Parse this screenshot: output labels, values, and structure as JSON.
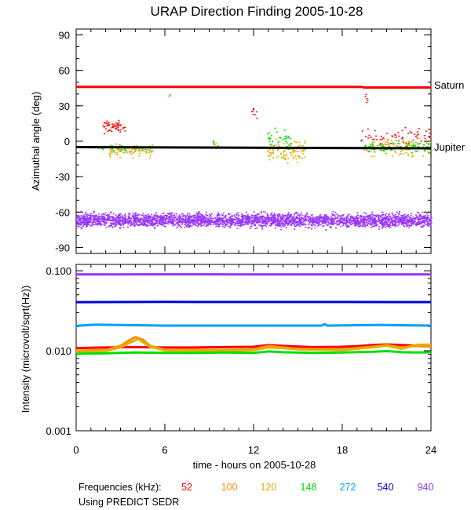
{
  "chart_data": [
    {
      "type": "scatter",
      "title": "URAP Direction Finding  2005-10-28",
      "ylabel": "Azimuthal angle (deg)",
      "ylim": [
        -95,
        95
      ],
      "yticks": [
        "90",
        "60",
        "30",
        "0",
        "-30",
        "-60",
        "-90"
      ],
      "xlim": [
        0,
        24
      ],
      "reference_lines": [
        {
          "name": "Saturn",
          "color": "#ff0000",
          "points": [
            [
              0,
              46
            ],
            [
              19.3,
              46
            ],
            [
              19.5,
              45.5
            ],
            [
              24,
              45.5
            ]
          ]
        },
        {
          "name": "Jupiter",
          "color": "#000000",
          "points": [
            [
              0,
              -5
            ],
            [
              24,
              -6
            ]
          ]
        }
      ],
      "series": [
        {
          "name": "52",
          "color": "#ff0000",
          "clusters": [
            {
              "x": [
                1.7,
                3.3
              ],
              "y": [
                5,
                20
              ],
              "count": 60
            },
            {
              "x": [
                11.8,
                12.3
              ],
              "y": [
                18,
                30
              ],
              "count": 8
            },
            {
              "x": [
                19.2,
                24
              ],
              "y": [
                -5,
                15
              ],
              "count": 60
            },
            {
              "x": [
                19.5,
                19.7
              ],
              "y": [
                30,
                45
              ],
              "count": 5
            }
          ]
        },
        {
          "name": "100",
          "color": "#ff8c00",
          "clusters": [
            {
              "x": [
                2.5,
                3.0
              ],
              "y": [
                -10,
                0
              ],
              "count": 8
            },
            {
              "x": [
                20.5,
                22.5
              ],
              "y": [
                -10,
                5
              ],
              "count": 20
            }
          ]
        },
        {
          "name": "120",
          "color": "#e0b000",
          "clusters": [
            {
              "x": [
                2.2,
                5.2
              ],
              "y": [
                -15,
                0
              ],
              "count": 90
            },
            {
              "x": [
                12.8,
                15.5
              ],
              "y": [
                -20,
                5
              ],
              "count": 110
            },
            {
              "x": [
                19.3,
                24
              ],
              "y": [
                -15,
                5
              ],
              "count": 90
            },
            {
              "x": [
                9.3,
                9.5
              ],
              "y": [
                -10,
                0
              ],
              "count": 4
            }
          ]
        },
        {
          "name": "148",
          "color": "#00e000",
          "clusters": [
            {
              "x": [
                1.4,
                5.0
              ],
              "y": [
                -10,
                -2
              ],
              "count": 25
            },
            {
              "x": [
                12.8,
                14.5
              ],
              "y": [
                -10,
                15
              ],
              "count": 35
            },
            {
              "x": [
                19.5,
                24
              ],
              "y": [
                -12,
                2
              ],
              "count": 80
            },
            {
              "x": [
                9.2,
                9.6
              ],
              "y": [
                -8,
                4
              ],
              "count": 6
            },
            {
              "x": [
                6.2,
                6.4
              ],
              "y": [
                35,
                42
              ],
              "count": 2
            }
          ]
        },
        {
          "name": "940",
          "color": "#9933ff",
          "clusters": [
            {
              "x": [
                0,
                24
              ],
              "y": [
                -75,
                -58
              ],
              "count": 3000
            }
          ]
        }
      ]
    },
    {
      "type": "line",
      "xlabel": "time - hours on 2005-10-28",
      "xticks": [
        "0",
        "6",
        "12",
        "18",
        "24"
      ],
      "ylabel": "Intensity (microvolt/sqrt(Hz))",
      "yscale": "log",
      "ylim": [
        0.001,
        0.12
      ],
      "yticks": [
        "0.100",
        "0.010",
        "0.001"
      ],
      "series": [
        {
          "name": "52",
          "color": "#ff0000",
          "x": [
            0,
            2,
            4,
            6,
            8,
            10,
            12,
            13,
            14,
            16,
            18,
            19,
            20,
            21,
            22,
            23,
            24
          ],
          "y": [
            0.0108,
            0.011,
            0.0111,
            0.011,
            0.011,
            0.0111,
            0.0112,
            0.0118,
            0.0115,
            0.0111,
            0.0112,
            0.0114,
            0.0118,
            0.012,
            0.0118,
            0.0116,
            0.0117
          ]
        },
        {
          "name": "100",
          "color": "#ff8c00",
          "x": [
            0,
            2,
            3,
            3.5,
            4,
            4.5,
            5,
            6,
            10,
            12,
            13,
            14,
            15,
            18,
            20,
            21,
            22,
            23,
            24
          ],
          "y": [
            0.01,
            0.0102,
            0.0115,
            0.0132,
            0.0148,
            0.0138,
            0.0115,
            0.0103,
            0.0102,
            0.0104,
            0.0115,
            0.011,
            0.0105,
            0.0104,
            0.0112,
            0.0118,
            0.011,
            0.0115,
            0.0112
          ]
        },
        {
          "name": "120",
          "color": "#e0b000",
          "x": [
            0,
            2,
            3,
            3.7,
            4.2,
            5,
            6,
            10,
            12,
            13,
            14,
            15,
            18,
            20,
            21,
            22,
            23,
            24
          ],
          "y": [
            0.0098,
            0.01,
            0.011,
            0.0128,
            0.014,
            0.0112,
            0.0101,
            0.01,
            0.0102,
            0.011,
            0.0108,
            0.0104,
            0.0102,
            0.011,
            0.0116,
            0.0106,
            0.0118,
            0.012
          ]
        },
        {
          "name": "148",
          "color": "#00e000",
          "x": [
            0,
            2,
            4,
            6,
            8,
            10,
            12,
            13,
            14,
            16,
            18,
            20,
            21,
            22,
            23,
            24
          ],
          "y": [
            0.0092,
            0.0093,
            0.0095,
            0.0094,
            0.0094,
            0.0095,
            0.0094,
            0.0098,
            0.0096,
            0.0094,
            0.0095,
            0.0097,
            0.0099,
            0.0096,
            0.0095,
            0.0096
          ]
        },
        {
          "name": "272",
          "color": "#00a0ff",
          "x": [
            0,
            1.3,
            6,
            12,
            16.6,
            16.8,
            17,
            20.5,
            24
          ],
          "y": [
            0.0205,
            0.0212,
            0.0206,
            0.0206,
            0.0206,
            0.0215,
            0.0206,
            0.021,
            0.0206
          ]
        },
        {
          "name": "540",
          "color": "#0000dd",
          "x": [
            0,
            6,
            12,
            18,
            24
          ],
          "y": [
            0.0405,
            0.0408,
            0.0407,
            0.0407,
            0.0406
          ]
        },
        {
          "name": "940",
          "color": "#9933ff",
          "x": [
            0,
            6,
            12,
            18,
            24
          ],
          "y": [
            0.09,
            0.0902,
            0.0901,
            0.0901,
            0.09
          ]
        }
      ]
    }
  ],
  "legend": {
    "label": "Frequencies (kHz):",
    "items": [
      {
        "text": "52",
        "color": "#ff0000"
      },
      {
        "text": "100",
        "color": "#ff8c00"
      },
      {
        "text": "120",
        "color": "#e0b000"
      },
      {
        "text": "148",
        "color": "#00e000"
      },
      {
        "text": "272",
        "color": "#00a0ff"
      },
      {
        "text": "540",
        "color": "#0000dd"
      },
      {
        "text": "940",
        "color": "#9933ff"
      }
    ],
    "note": "Using PREDICT SEDR"
  }
}
